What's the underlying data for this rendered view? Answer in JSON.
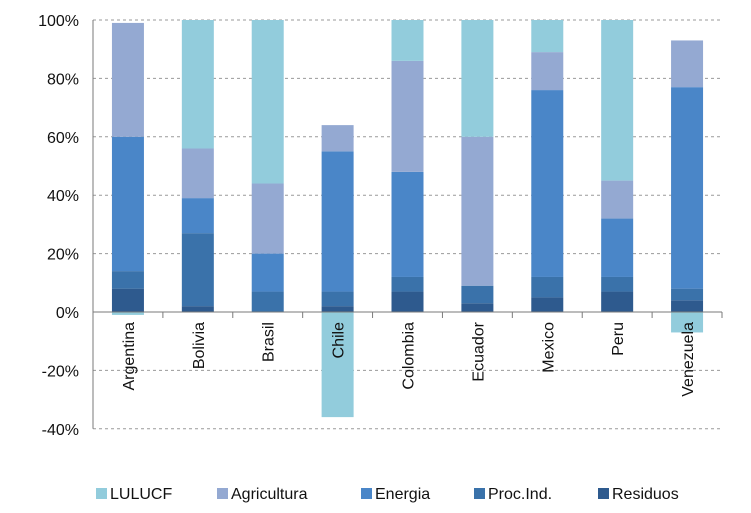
{
  "chart_data": {
    "type": "bar",
    "stacked": true,
    "categories": [
      "Argentina",
      "Bolivia",
      "Brasil",
      "Chile",
      "Colombia",
      "Ecuador",
      "Mexico",
      "Peru",
      "Venezuela"
    ],
    "series": [
      {
        "name": "Residuos",
        "color": "#2e5a8e",
        "values": [
          8,
          2,
          0,
          2,
          7,
          3,
          5,
          7,
          4
        ]
      },
      {
        "name": "Proc.Ind.",
        "color": "#3a72aa",
        "values": [
          6,
          25,
          7,
          5,
          5,
          6,
          7,
          5,
          4
        ]
      },
      {
        "name": "Energia",
        "color": "#4a86c8",
        "values": [
          46,
          12,
          13,
          48,
          36,
          0,
          64,
          20,
          69
        ]
      },
      {
        "name": "Agricultura",
        "color": "#94a9d2",
        "values": [
          39,
          17,
          24,
          9,
          38,
          51,
          13,
          13,
          16
        ]
      },
      {
        "name": "LULUCF",
        "color": "#92ccdc",
        "values": [
          -1,
          44,
          56,
          -36,
          14,
          40,
          11,
          55,
          -7
        ]
      }
    ],
    "legend_order": [
      "LULUCF",
      "Agricultura",
      "Energia",
      "Proc.Ind.",
      "Residuos"
    ],
    "y_ticks": [
      "100%",
      "80%",
      "60%",
      "40%",
      "20%",
      "0%",
      "-20%",
      "-40%"
    ],
    "ylim": [
      -40,
      100
    ],
    "grid": true,
    "legend_position": "bottom",
    "title": "",
    "xlabel": "",
    "ylabel": ""
  }
}
